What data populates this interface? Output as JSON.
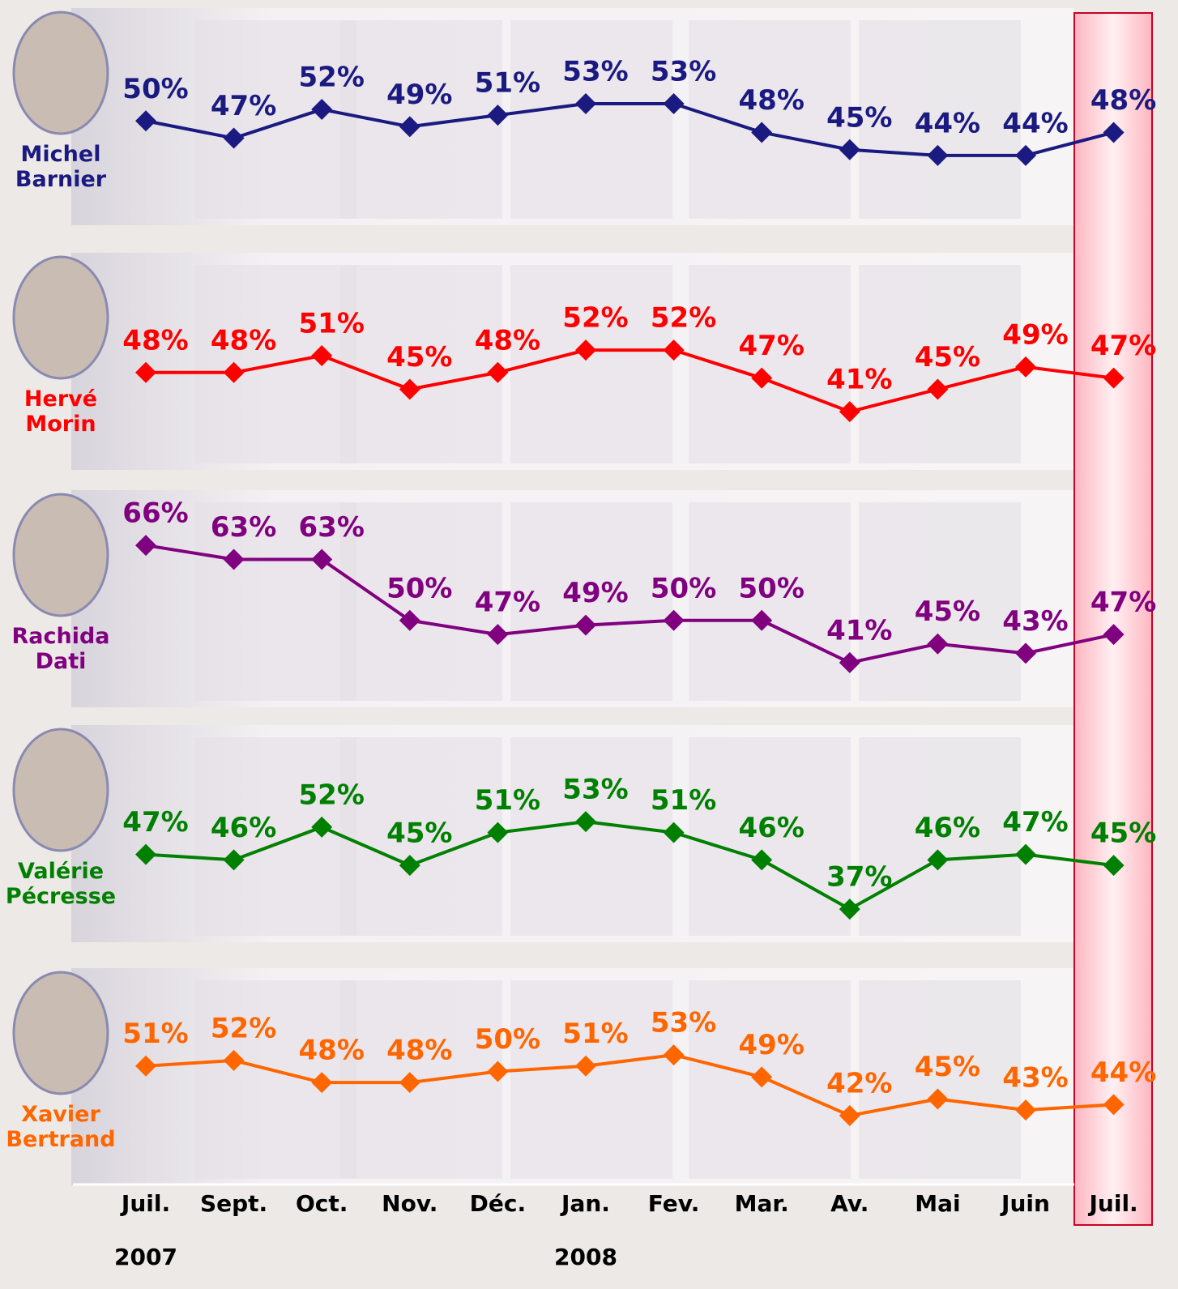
{
  "chart_data": {
    "type": "line",
    "categories": [
      "Juil.",
      "Sept.",
      "Oct.",
      "Nov.",
      "Déc.",
      "Jan.",
      "Fev.",
      "Mar.",
      "Av.",
      "Mai",
      "Juin",
      "Juil."
    ],
    "years": [
      "2007",
      null,
      null,
      null,
      null,
      "2008",
      null,
      null,
      null,
      null,
      null,
      null
    ],
    "series": [
      {
        "name": "Michel Barnier",
        "color": "#1a1a80",
        "ylim": [
          34.4,
          66.8
        ],
        "values": [
          50,
          47,
          52,
          49,
          51,
          53,
          53,
          48,
          45,
          44,
          44,
          48
        ],
        "value_labels": [
          "50%",
          "47%",
          "52%",
          "49%",
          "51%",
          "53%",
          "53%",
          "48%",
          "45%",
          "44%",
          "44%",
          "48%"
        ]
      },
      {
        "name": "Hervé Morin",
        "color": "#ff0000",
        "ylim": [
          33.2,
          66.5
        ],
        "values": [
          48,
          48,
          51,
          45,
          48,
          52,
          52,
          47,
          41,
          45,
          49,
          47
        ],
        "value_labels": [
          "48%",
          "48%",
          "51%",
          "45%",
          "48%",
          "52%",
          "52%",
          "47%",
          "41%",
          "45%",
          "49%",
          "47%"
        ]
      },
      {
        "name": "Rachida Dati",
        "color": "#800080",
        "ylim": [
          34.6,
          74.3
        ],
        "values": [
          66,
          63,
          63,
          50,
          47,
          49,
          50,
          50,
          41,
          45,
          43,
          47
        ],
        "value_labels": [
          "66%",
          "63%",
          "63%",
          "50%",
          "47%",
          "49%",
          "50%",
          "50%",
          "41%",
          "45%",
          "43%",
          "47%"
        ]
      },
      {
        "name": "Valérie Pécresse",
        "color": "#008000",
        "ylim": [
          33.6,
          67.7
        ],
        "values": [
          47,
          46,
          52,
          45,
          51,
          53,
          51,
          46,
          37,
          46,
          47,
          45
        ],
        "value_labels": [
          "47%",
          "46%",
          "52%",
          "45%",
          "51%",
          "53%",
          "51%",
          "46%",
          "37%",
          "46%",
          "47%",
          "45%"
        ]
      },
      {
        "name": "Xavier Bertrand",
        "color": "#ff6600",
        "ylim": [
          32,
          65.8
        ],
        "values": [
          51,
          52,
          48,
          48,
          50,
          51,
          53,
          49,
          42,
          45,
          43,
          44
        ],
        "value_labels": [
          "51%",
          "52%",
          "48%",
          "48%",
          "50%",
          "51%",
          "53%",
          "49%",
          "42%",
          "45%",
          "43%",
          "44%"
        ]
      }
    ]
  }
}
